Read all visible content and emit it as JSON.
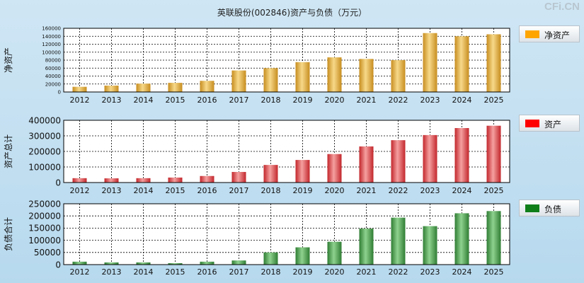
{
  "title": "英联股份(002846)资产与负债（万元）",
  "watermark": "CFi.CN",
  "chart_data": [
    {
      "type": "bar",
      "ylabel": "净资产",
      "legend": "净资产",
      "legend_color": "#ffa500",
      "bar_light": "#f7d98a",
      "bar_dark": "#c78d1f",
      "categories": [
        "2012",
        "2013",
        "2014",
        "2015",
        "2016",
        "2017",
        "2018",
        "2019",
        "2020",
        "2021",
        "2022",
        "2023",
        "2024",
        "2025"
      ],
      "values": [
        13000,
        16000,
        21000,
        23000,
        28000,
        54000,
        60000,
        75000,
        87000,
        83000,
        80000,
        148000,
        140000,
        145000
      ],
      "ylim": [
        0,
        160000
      ],
      "yticks": [
        0,
        20000,
        40000,
        60000,
        80000,
        100000,
        120000,
        140000,
        160000
      ]
    },
    {
      "type": "bar",
      "ylabel": "资产总计",
      "legend": "资产",
      "legend_color": "#ff0000",
      "bar_light": "#f5a0a0",
      "bar_dark": "#c2262b",
      "categories": [
        "2012",
        "2013",
        "2014",
        "2015",
        "2016",
        "2017",
        "2018",
        "2019",
        "2020",
        "2021",
        "2022",
        "2023",
        "2024",
        "2025"
      ],
      "values": [
        28000,
        27000,
        28000,
        32000,
        42000,
        68000,
        113000,
        145000,
        183000,
        232000,
        272000,
        305000,
        350000,
        365000
      ],
      "ylim": [
        0,
        400000
      ],
      "yticks": [
        0,
        100000,
        200000,
        300000,
        400000
      ]
    },
    {
      "type": "bar",
      "ylabel": "负债合计",
      "legend": "负债",
      "legend_color": "#0f7f1a",
      "bar_light": "#8fd28f",
      "bar_dark": "#2f7d34",
      "categories": [
        "2012",
        "2013",
        "2014",
        "2015",
        "2016",
        "2017",
        "2018",
        "2019",
        "2020",
        "2021",
        "2022",
        "2023",
        "2024",
        "2025"
      ],
      "values": [
        12000,
        9000,
        9000,
        6000,
        12000,
        17000,
        50000,
        71000,
        94000,
        148000,
        193000,
        158000,
        211000,
        220000
      ],
      "ylim": [
        0,
        250000
      ],
      "yticks": [
        0,
        50000,
        100000,
        150000,
        200000,
        250000
      ]
    }
  ]
}
